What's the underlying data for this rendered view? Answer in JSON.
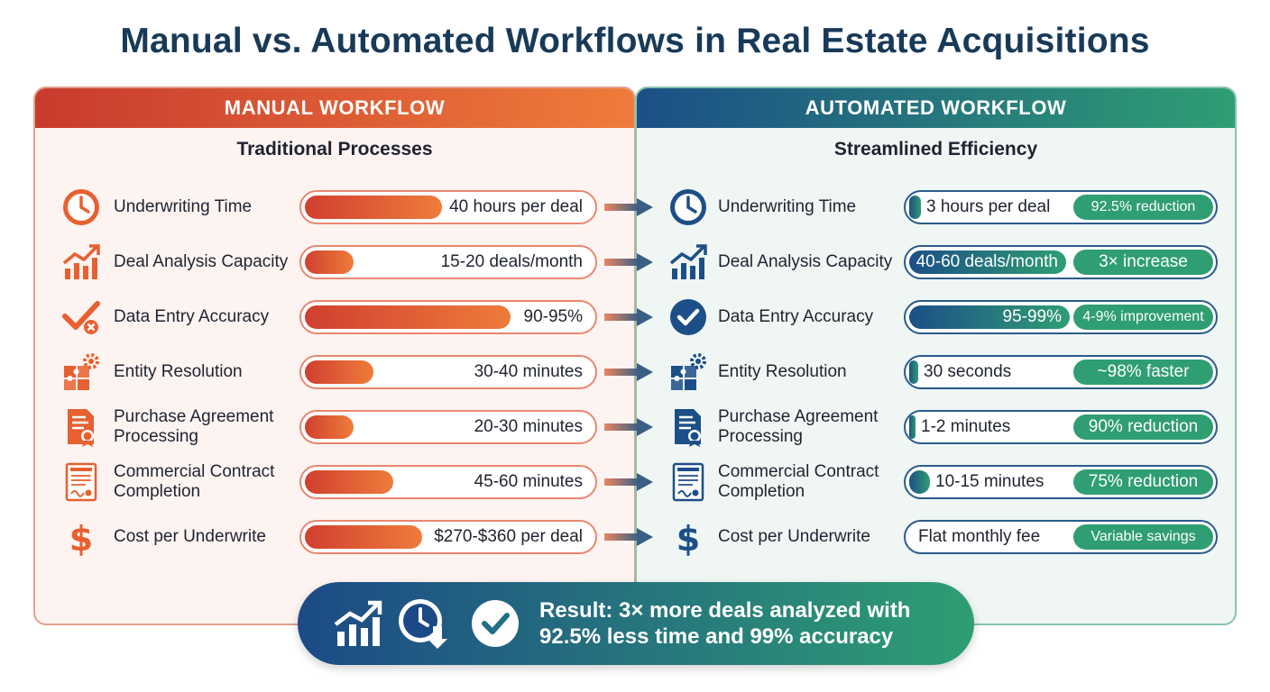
{
  "title": "Manual vs. Automated Workflows in Real Estate Acquisitions",
  "manual": {
    "header": "MANUAL WORKFLOW",
    "subtitle": "Traditional Processes",
    "accent_color": "#e8602f",
    "rows": [
      {
        "icon": "clock-icon",
        "label": "Underwriting Time",
        "value": "40 hours per deal",
        "fill": 0.48
      },
      {
        "icon": "growth-chart-icon",
        "label": "Deal Analysis Capacity",
        "value": "15-20 deals/month",
        "fill": 0.17
      },
      {
        "icon": "checkmark-x-icon",
        "label": "Data Entry Accuracy",
        "value": "90-95%",
        "fill": 0.72
      },
      {
        "icon": "puzzle-gear-icon",
        "label": "Entity Resolution",
        "value": "30-40 minutes",
        "fill": 0.24
      },
      {
        "icon": "document-seal-icon",
        "label": "Purchase Agreement Processing",
        "value": "20-30 minutes",
        "fill": 0.17
      },
      {
        "icon": "contract-icon",
        "label": "Commercial Contract Completion",
        "value": "45-60 minutes",
        "fill": 0.31
      },
      {
        "icon": "dollar-icon",
        "label": "Cost per Underwrite",
        "value": "$270-$360 per deal",
        "fill": 0.41
      }
    ]
  },
  "automated": {
    "header": "AUTOMATED WORKFLOW",
    "subtitle": "Streamlined Efficiency",
    "accent_color": "#2f9e73",
    "rows": [
      {
        "icon": "clock-icon",
        "label": "Underwriting Time",
        "value": "3 hours per deal",
        "badge": "92.5% reduction",
        "fill": 0.04
      },
      {
        "icon": "growth-chart-icon",
        "label": "Deal Analysis Capacity",
        "value": "40-60 deals/month",
        "badge": "3× increase",
        "fill": 0.52
      },
      {
        "icon": "check-circle-icon",
        "label": "Data Entry Accuracy",
        "value": "95-99%",
        "badge": "4-9% improvement",
        "fill": 0.53
      },
      {
        "icon": "puzzle-gear-icon",
        "label": "Entity Resolution",
        "value": "30 seconds",
        "badge": "~98% faster",
        "fill": 0.03
      },
      {
        "icon": "document-seal-icon",
        "label": "Purchase Agreement Processing",
        "value": "1-2 minutes",
        "badge": "90% reduction",
        "fill": 0.02
      },
      {
        "icon": "contract-icon",
        "label": "Commercial Contract Completion",
        "value": "10-15 minutes",
        "badge": "75% reduction",
        "fill": 0.07
      },
      {
        "icon": "dollar-icon",
        "label": "Cost per Underwrite",
        "value": "Flat monthly fee",
        "badge": "Variable savings",
        "fill": 0
      }
    ]
  },
  "result": {
    "icons": [
      "growth-chart-icon",
      "clock-down-arrow-icon",
      "check-circle-icon"
    ],
    "line1": "Result: 3× more deals analyzed with",
    "line2": "92.5% less time and 99% accuracy"
  }
}
